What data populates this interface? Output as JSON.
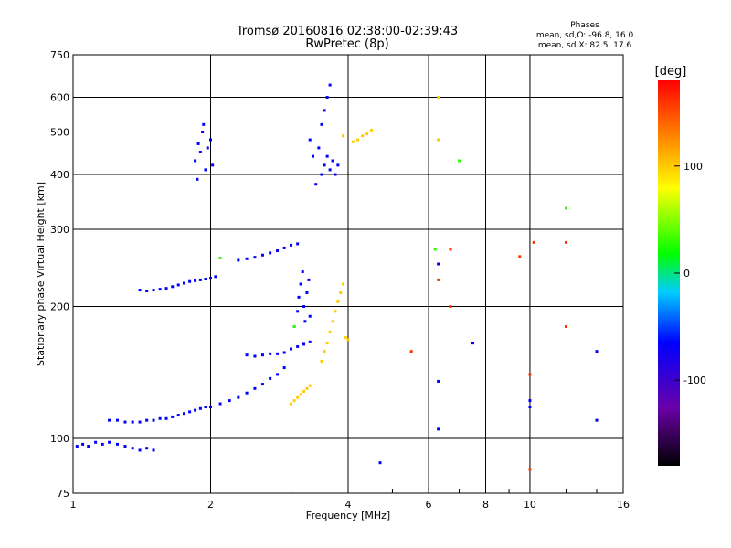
{
  "chart_data": {
    "type": "scatter",
    "title": "Tromsø 20160816 02:38:00-02:39:43",
    "subtitle": "RwPretec (8p)",
    "xlabel": "Frequency [MHz]",
    "ylabel": "Stationary phase Virtual Height [km]",
    "xscale": "log",
    "yscale": "log",
    "xlim": [
      1,
      16
    ],
    "ylim": [
      75,
      750
    ],
    "xticks": [
      1,
      2,
      4,
      6,
      8,
      10,
      16
    ],
    "yticks": [
      75,
      100,
      200,
      300,
      400,
      500,
      600,
      750
    ],
    "grid": true,
    "legend": {
      "title": "Phases",
      "lines": [
        "mean, sd,O: -96.8, 16.0",
        "mean, sd,X:  82.5, 17.6"
      ],
      "placement": "top-right"
    },
    "colorbar": {
      "label": "[deg]",
      "range": [
        -180,
        180
      ],
      "ticks": [
        100,
        0,
        -100
      ],
      "placement": "right"
    },
    "series": [
      {
        "color_phase": -100,
        "points": [
          [
            1.02,
            96
          ],
          [
            1.05,
            97
          ],
          [
            1.08,
            96
          ],
          [
            1.12,
            98
          ],
          [
            1.16,
            97
          ],
          [
            1.2,
            98
          ],
          [
            1.25,
            97
          ],
          [
            1.3,
            96
          ],
          [
            1.35,
            95
          ],
          [
            1.4,
            94
          ],
          [
            1.45,
            95
          ],
          [
            1.5,
            94
          ],
          [
            1.2,
            110
          ],
          [
            1.25,
            110
          ],
          [
            1.3,
            109
          ],
          [
            1.35,
            109
          ],
          [
            1.4,
            109
          ],
          [
            1.45,
            110
          ],
          [
            1.5,
            110
          ],
          [
            1.55,
            111
          ],
          [
            1.6,
            111
          ],
          [
            1.65,
            112
          ],
          [
            1.7,
            113
          ],
          [
            1.75,
            114
          ],
          [
            1.8,
            115
          ],
          [
            1.85,
            116
          ],
          [
            1.9,
            117
          ],
          [
            1.95,
            118
          ],
          [
            2.0,
            118
          ],
          [
            2.1,
            120
          ],
          [
            2.2,
            122
          ],
          [
            2.3,
            124
          ],
          [
            2.4,
            127
          ],
          [
            2.5,
            130
          ],
          [
            2.6,
            133
          ],
          [
            2.7,
            137
          ],
          [
            2.8,
            140
          ],
          [
            2.9,
            145
          ],
          [
            1.4,
            218
          ],
          [
            1.45,
            217
          ],
          [
            1.5,
            218
          ],
          [
            1.55,
            219
          ],
          [
            1.6,
            220
          ],
          [
            1.65,
            222
          ],
          [
            1.7,
            224
          ],
          [
            1.75,
            226
          ],
          [
            1.8,
            228
          ],
          [
            1.85,
            229
          ],
          [
            1.9,
            230
          ],
          [
            1.95,
            231
          ],
          [
            2.0,
            232
          ],
          [
            2.05,
            234
          ],
          [
            2.4,
            155
          ],
          [
            2.5,
            154
          ],
          [
            2.6,
            155
          ],
          [
            2.7,
            156
          ],
          [
            2.8,
            156
          ],
          [
            2.9,
            157
          ],
          [
            3.0,
            160
          ],
          [
            3.1,
            162
          ],
          [
            3.2,
            164
          ],
          [
            3.3,
            166
          ],
          [
            2.3,
            255
          ],
          [
            2.4,
            257
          ],
          [
            2.5,
            259
          ],
          [
            2.6,
            262
          ],
          [
            2.7,
            265
          ],
          [
            2.8,
            268
          ],
          [
            2.9,
            272
          ],
          [
            3.0,
            276
          ],
          [
            3.1,
            278
          ],
          [
            1.85,
            430
          ],
          [
            1.88,
            470
          ],
          [
            1.9,
            450
          ],
          [
            1.92,
            500
          ],
          [
            1.95,
            410
          ],
          [
            1.97,
            460
          ],
          [
            2.0,
            480
          ],
          [
            2.02,
            420
          ],
          [
            1.87,
            390
          ],
          [
            1.93,
            520
          ],
          [
            3.05,
            180
          ],
          [
            3.1,
            195
          ],
          [
            3.12,
            210
          ],
          [
            3.15,
            225
          ],
          [
            3.18,
            240
          ],
          [
            3.2,
            200
          ],
          [
            3.22,
            185
          ],
          [
            3.25,
            215
          ],
          [
            3.28,
            230
          ],
          [
            3.3,
            190
          ],
          [
            3.4,
            380
          ],
          [
            3.5,
            400
          ],
          [
            3.55,
            420
          ],
          [
            3.6,
            440
          ],
          [
            3.65,
            410
          ],
          [
            3.7,
            430
          ],
          [
            3.75,
            400
          ],
          [
            3.8,
            420
          ],
          [
            3.45,
            460
          ],
          [
            3.5,
            520
          ],
          [
            3.55,
            560
          ],
          [
            3.6,
            600
          ],
          [
            3.65,
            640
          ],
          [
            3.3,
            480
          ],
          [
            3.35,
            440
          ],
          [
            6.3,
            135
          ],
          [
            6.3,
            105
          ],
          [
            6.3,
            250
          ],
          [
            7.5,
            165
          ],
          [
            10.0,
            118
          ],
          [
            10.0,
            122
          ],
          [
            14.0,
            110
          ],
          [
            14.0,
            158
          ],
          [
            4.7,
            88
          ]
        ]
      },
      {
        "color_phase": 100,
        "points": [
          [
            3.0,
            120
          ],
          [
            3.05,
            122
          ],
          [
            3.1,
            124
          ],
          [
            3.15,
            126
          ],
          [
            3.2,
            128
          ],
          [
            3.25,
            130
          ],
          [
            3.3,
            132
          ],
          [
            3.5,
            150
          ],
          [
            3.55,
            158
          ],
          [
            3.6,
            165
          ],
          [
            3.65,
            175
          ],
          [
            3.7,
            185
          ],
          [
            3.75,
            195
          ],
          [
            3.8,
            205
          ],
          [
            3.85,
            215
          ],
          [
            3.9,
            225
          ],
          [
            3.95,
            170
          ],
          [
            4.0,
            168
          ],
          [
            4.1,
            475
          ],
          [
            4.2,
            480
          ],
          [
            4.3,
            490
          ],
          [
            4.4,
            495
          ],
          [
            4.5,
            505
          ],
          [
            3.9,
            490
          ],
          [
            6.3,
            480
          ],
          [
            6.3,
            600
          ]
        ]
      },
      {
        "color_phase": 160,
        "points": [
          [
            5.5,
            158
          ],
          [
            6.3,
            230
          ],
          [
            6.7,
            200
          ],
          [
            6.7,
            270
          ],
          [
            9.5,
            260
          ],
          [
            10.2,
            280
          ],
          [
            12.0,
            280
          ],
          [
            12.0,
            180
          ],
          [
            10.0,
            140
          ],
          [
            10.0,
            85
          ]
        ]
      },
      {
        "color_phase": 30,
        "points": [
          [
            2.1,
            258
          ],
          [
            3.05,
            180
          ],
          [
            6.2,
            270
          ],
          [
            7.0,
            430
          ],
          [
            12.0,
            335
          ]
        ]
      }
    ]
  }
}
